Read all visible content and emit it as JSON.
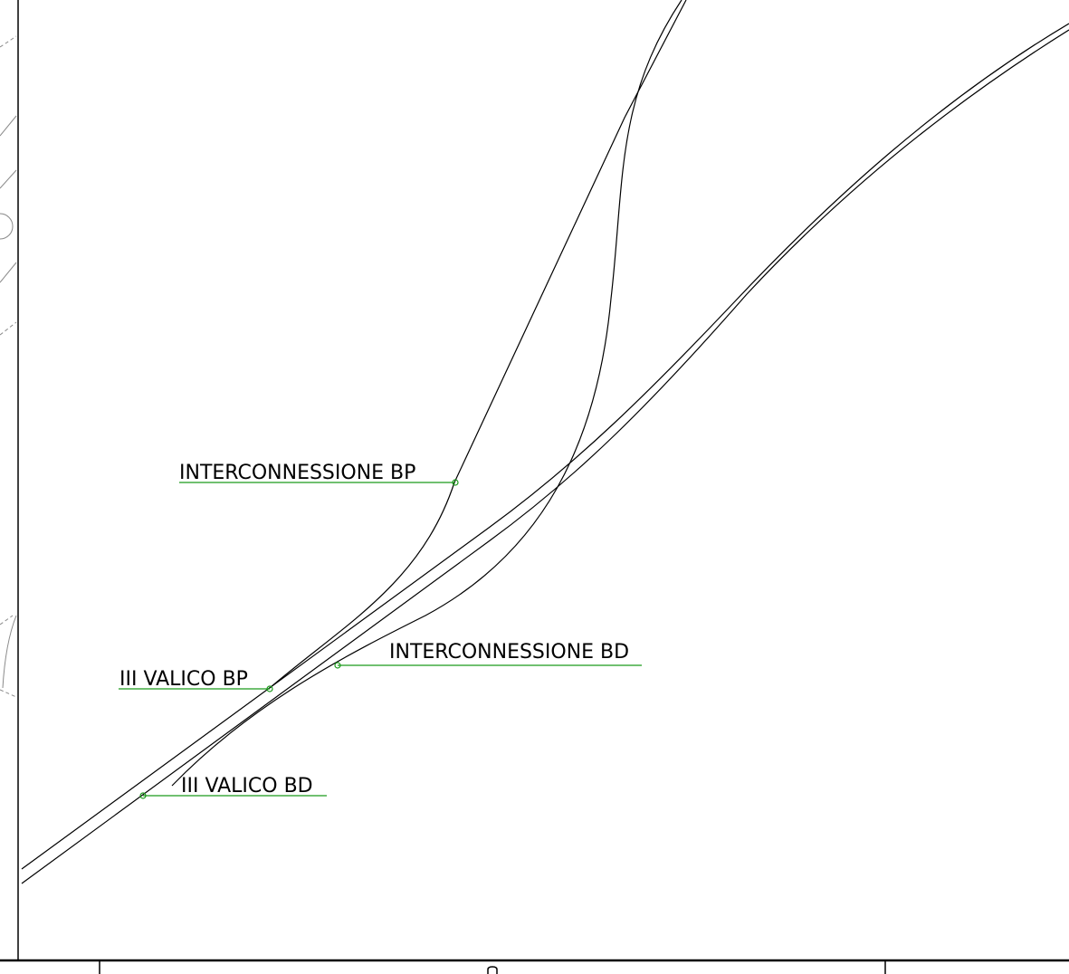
{
  "labels": {
    "interconnessione_bp": "INTERCONNESSIONE BP",
    "interconnessione_bd": "INTERCONNESSIONE BD",
    "iii_valico_bp": "III VALICO BP",
    "iii_valico_bd": "III VALICO BD"
  },
  "colors": {
    "track": "#000000",
    "leader": "#1a9a1a",
    "context": "#8a8a8a",
    "background": "#ffffff"
  }
}
